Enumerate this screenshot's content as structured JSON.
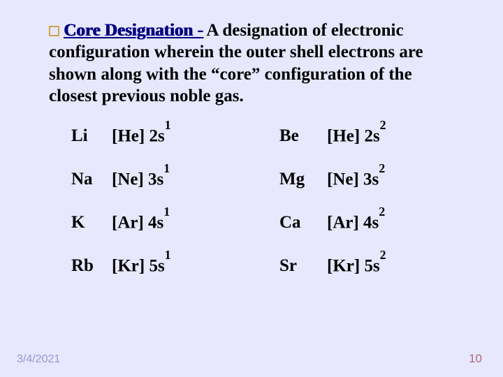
{
  "slide": {
    "background_color": "#e7e7fd",
    "bullet_color": "#cca352",
    "term_color": "#000080",
    "body_color": "#000000",
    "term_text": "Core Designation -",
    "body_text": " A designation of electronic configuration wherein the outer shell electrons are shown along with the “core” configuration of the closest previous noble gas.",
    "font_family": "Times New Roman",
    "font_size_pt": 19,
    "table_text_color": "#000000"
  },
  "table": {
    "rows": [
      {
        "left_symbol": "Li",
        "left_core": "[He]",
        "left_orbital": "2s",
        "left_exp": "1",
        "right_symbol": "Be",
        "right_core": "[He]",
        "right_orbital": "2s",
        "right_exp": "2"
      },
      {
        "left_symbol": "Na",
        "left_core": "[Ne]",
        "left_orbital": "3s",
        "left_exp": "1",
        "right_symbol": "Mg",
        "right_core": "[Ne]",
        "right_orbital": "3s",
        "right_exp": "2"
      },
      {
        "left_symbol": "K",
        "left_core": "[Ar]",
        "left_orbital": "4s",
        "left_exp": "1",
        "right_symbol": "Ca",
        "right_core": "[Ar]",
        "right_orbital": "4s",
        "right_exp": "2"
      },
      {
        "left_symbol": "Rb",
        "left_core": "[Kr]",
        "left_orbital": "5s",
        "left_exp": "1",
        "right_symbol": "Sr",
        "right_core": "[Kr]",
        "right_orbital": "5s",
        "right_exp": "2"
      }
    ]
  },
  "footer": {
    "date": "3/4/2021",
    "page": "10"
  }
}
